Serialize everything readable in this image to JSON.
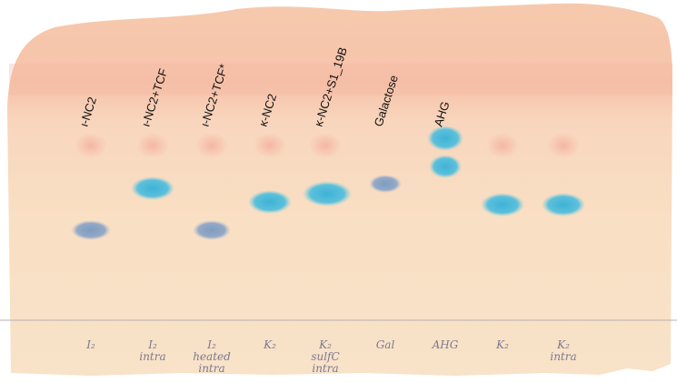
{
  "lanes": [
    {
      "label": "ι-NC2",
      "note": [
        "I₂"
      ]
    },
    {
      "label": "ι-NC2+TCF",
      "note": [
        "I₂",
        "intra"
      ]
    },
    {
      "label": "ι-NC2+TCF*",
      "note": [
        "I₂",
        "heated",
        "intra"
      ]
    },
    {
      "label": "κ-NC2",
      "note": [
        "K₂"
      ]
    },
    {
      "label": "κ-NC2+S1_19B",
      "note": [
        "K₂",
        "sulfC",
        "intra"
      ]
    },
    {
      "label": "Galactose",
      "note": [
        "Gal"
      ]
    },
    {
      "label": "AHG",
      "note": [
        "AHG"
      ]
    },
    {
      "label": null,
      "note": [
        "K₂"
      ]
    },
    {
      "label": null,
      "note": [
        "K₂",
        "intra"
      ]
    }
  ]
}
